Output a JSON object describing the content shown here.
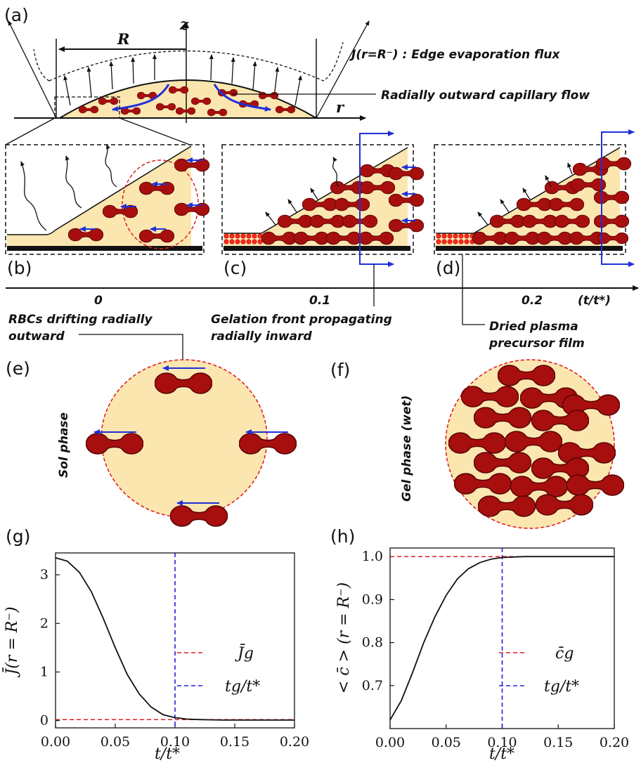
{
  "panels": {
    "a": "(a)",
    "b": "(b)",
    "c": "(c)",
    "d": "(d)",
    "e": "(e)",
    "f": "(f)",
    "g": "(g)",
    "h": "(h)"
  },
  "schematic": {
    "R_label": "R",
    "z_label": "z",
    "r_label": "r",
    "flux_label": "J(r=R⁻) : Edge evaporation flux",
    "capillary_label": "Radially outward capillary flow"
  },
  "timeline": {
    "ticks": [
      "0",
      "0.1",
      "0.2"
    ],
    "axis_label": "(t/t*)"
  },
  "annotations": {
    "rbc_drift_line1": "RBCs drifting radially",
    "rbc_drift_line2": "outward",
    "gelation_line1": "Gelation front propagating",
    "gelation_line2": "radially inward",
    "dried_line1": "Dried plasma",
    "dried_line2": "precursor film"
  },
  "phases": {
    "sol": "Sol phase",
    "gel": "Gel phase (wet)"
  },
  "colors": {
    "fluid": "#fbe6b0",
    "rbc": "#a70f0f",
    "flow_arrow": "#1f2fd8",
    "reference_red": "#e01f1f",
    "reference_blue": "#2020e0"
  },
  "chart_data": [
    {
      "type": "line",
      "panel": "(g)",
      "xlabel": "t/t*",
      "ylabel": "J̄(r = R⁻)",
      "xlim": [
        0.0,
        0.2
      ],
      "ylim": [
        -0.15,
        3.45
      ],
      "xticks": [
        "0.00",
        "0.05",
        "0.10",
        "0.15",
        "0.20"
      ],
      "yticks": [
        "0",
        "1",
        "2",
        "3"
      ],
      "x": [
        0.0,
        0.01,
        0.02,
        0.03,
        0.04,
        0.05,
        0.06,
        0.07,
        0.08,
        0.09,
        0.1,
        0.11,
        0.12,
        0.14,
        0.16,
        0.18,
        0.2
      ],
      "series": [
        {
          "values": [
            3.35,
            3.28,
            3.05,
            2.65,
            2.1,
            1.5,
            0.95,
            0.55,
            0.28,
            0.12,
            0.06,
            0.03,
            0.02,
            0.01,
            0.01,
            0.01,
            0.01
          ]
        }
      ],
      "hlines": [
        {
          "name": "J̄g",
          "y": 0.02,
          "color": "red",
          "style": "dashed"
        }
      ],
      "vlines": [
        {
          "name": "tg/t*",
          "x": 0.1,
          "color": "blue",
          "style": "dashed"
        }
      ],
      "legend": [
        "J̄g",
        "tg/t*"
      ],
      "legend_position": "lower-right"
    },
    {
      "type": "line",
      "panel": "(h)",
      "xlabel": "t/t*",
      "ylabel": "< c̄ > (r = R⁻)",
      "xlim": [
        0.0,
        0.2
      ],
      "ylim": [
        0.6,
        1.02
      ],
      "xticks": [
        "0.00",
        "0.05",
        "0.10",
        "0.15",
        "0.20"
      ],
      "yticks": [
        "0.7",
        "0.8",
        "0.9",
        "1.0"
      ],
      "x": [
        0.0,
        0.01,
        0.02,
        0.03,
        0.04,
        0.05,
        0.06,
        0.07,
        0.08,
        0.09,
        0.1,
        0.12,
        0.14,
        0.16,
        0.18,
        0.2
      ],
      "series": [
        {
          "values": [
            0.62,
            0.665,
            0.73,
            0.8,
            0.86,
            0.91,
            0.948,
            0.972,
            0.986,
            0.994,
            0.998,
            1.0,
            1.0,
            1.0,
            1.0,
            1.0
          ]
        }
      ],
      "hlines": [
        {
          "name": "c̄g",
          "y": 1.0,
          "color": "red",
          "style": "dashed"
        }
      ],
      "vlines": [
        {
          "name": "tg/t*",
          "x": 0.1,
          "color": "blue",
          "style": "dashed"
        }
      ],
      "legend": [
        "c̄g",
        "tg/t*"
      ],
      "legend_position": "lower-right"
    }
  ]
}
